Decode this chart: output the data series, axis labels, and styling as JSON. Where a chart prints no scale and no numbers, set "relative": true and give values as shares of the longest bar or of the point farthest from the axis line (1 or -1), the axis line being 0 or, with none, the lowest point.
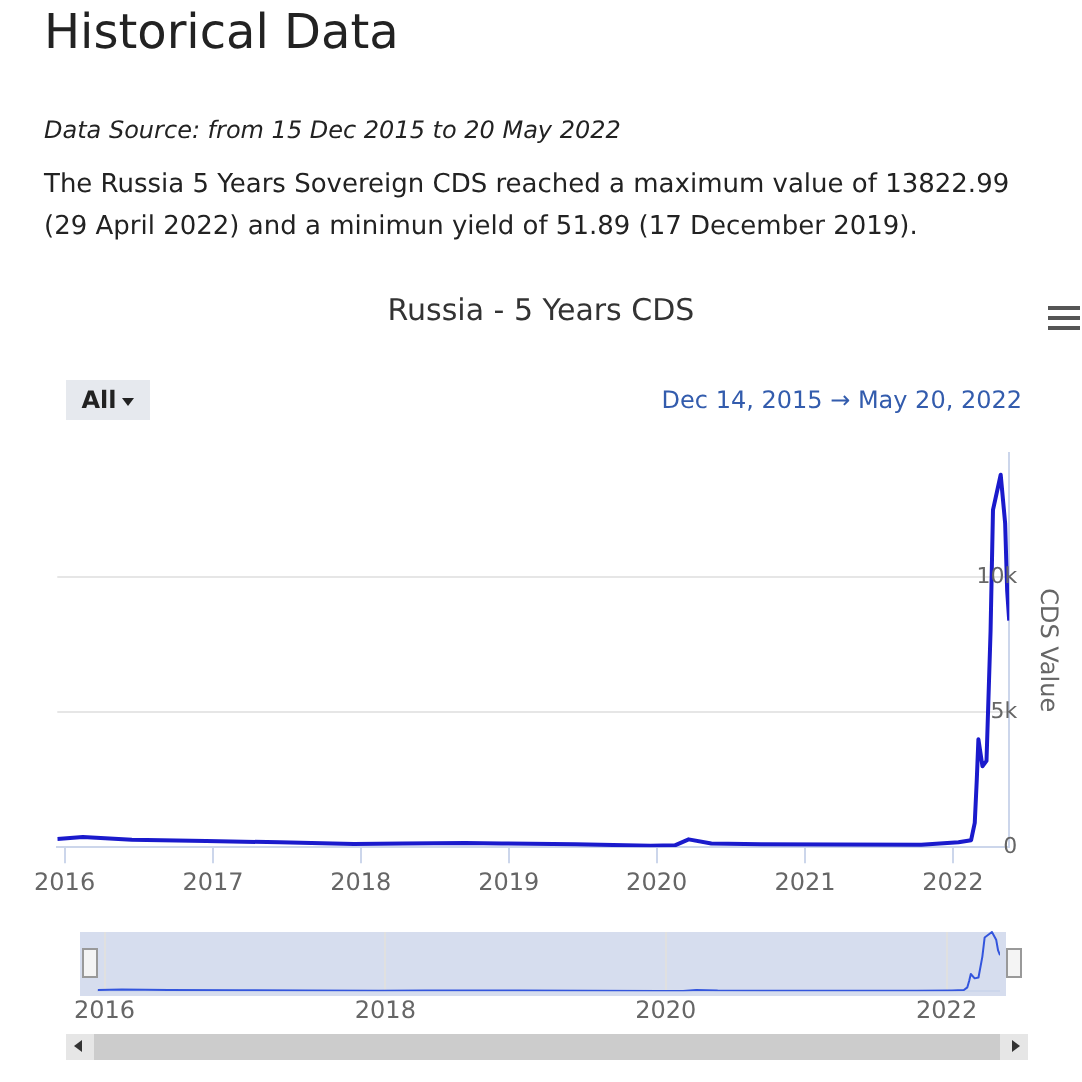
{
  "chart_data": [
    {
      "type": "line",
      "title": "Russia - 5 Years CDS",
      "ylabel": "CDS Value",
      "annotations": [
        "Historical Data",
        "Data Source: from 15 Dec 2015 to 20 May 2022",
        "The Russia 5 Years Sovereign CDS reached a maximum value of 13822.99 (29 April 2022) and a minimun yield of 51.89 (17 December 2019).",
        "All",
        "Dec 14, 2015",
        "→",
        "May 20, 2022"
      ],
      "x": [
        "2015-12-14",
        "2016-02-15",
        "2016-06-15",
        "2016-12-15",
        "2017-06-15",
        "2017-12-15",
        "2018-04-15",
        "2018-09-15",
        "2018-12-15",
        "2019-06-15",
        "2019-12-17",
        "2020-02-15",
        "2020-03-20",
        "2020-05-15",
        "2020-09-15",
        "2021-03-15",
        "2021-10-15",
        "2022-01-15",
        "2022-02-15",
        "2022-02-24",
        "2022-03-01",
        "2022-03-05",
        "2022-03-15",
        "2022-03-25",
        "2022-04-04",
        "2022-04-10",
        "2022-04-29",
        "2022-05-10",
        "2022-05-15",
        "2022-05-20"
      ],
      "values": [
        300,
        380,
        280,
        230,
        180,
        120,
        140,
        160,
        140,
        110,
        50,
        70,
        290,
        140,
        110,
        100,
        90,
        180,
        260,
        900,
        2500,
        4000,
        3000,
        3200,
        8000,
        12500,
        13800,
        12000,
        9500,
        8400
      ],
      "color": "#1a1acc",
      "marker": "none",
      "line_style": "solid",
      "grid": "y",
      "legend": false,
      "xlim": [
        "2015-12-14",
        "2022-05-20"
      ],
      "xticks": [
        {
          "value": "2016-01-01",
          "label": "2016"
        },
        {
          "value": "2017-01-01",
          "label": "2017"
        },
        {
          "value": "2018-01-01",
          "label": "2018"
        },
        {
          "value": "2019-01-01",
          "label": "2019"
        },
        {
          "value": "2020-01-01",
          "label": "2020"
        },
        {
          "value": "2021-01-01",
          "label": "2021"
        },
        {
          "value": "2022-01-01",
          "label": "2022"
        }
      ],
      "ylim": [
        0,
        14600
      ],
      "yticks": [
        0,
        {
          "value": 5000,
          "label": "5k"
        },
        {
          "value": 10000,
          "label": "10k"
        }
      ]
    },
    {
      "type": "line",
      "x": [
        "2015-12-14",
        "2016-02-15",
        "2016-06-15",
        "2016-12-15",
        "2017-06-15",
        "2017-12-15",
        "2018-04-15",
        "2018-09-15",
        "2018-12-15",
        "2019-06-15",
        "2019-12-17",
        "2020-02-15",
        "2020-03-20",
        "2020-05-15",
        "2020-09-15",
        "2021-03-15",
        "2021-10-15",
        "2022-01-15",
        "2022-02-15",
        "2022-02-24",
        "2022-03-01",
        "2022-03-05",
        "2022-03-15",
        "2022-03-25",
        "2022-04-04",
        "2022-04-10",
        "2022-04-29",
        "2022-05-10",
        "2022-05-15",
        "2022-05-20"
      ],
      "values": [
        0.022,
        0.028,
        0.02,
        0.017,
        0.013,
        0.009,
        0.01,
        0.012,
        0.01,
        0.008,
        0.004,
        0.005,
        0.021,
        0.01,
        0.008,
        0.007,
        0.007,
        0.013,
        0.019,
        0.065,
        0.181,
        0.29,
        0.217,
        0.232,
        0.58,
        0.906,
        1,
        0.87,
        0.688,
        0.609
      ],
      "relative": true,
      "color": "#3355dd",
      "marker": "none",
      "line_style": "solid",
      "grid": "x",
      "legend": false,
      "tick_labels": "x",
      "xlim": [
        "2015-12-14",
        "2022-05-20"
      ],
      "xticks": [
        {
          "value": "2016-01-01",
          "label": "2016"
        },
        {
          "value": "2018-01-01",
          "label": "2018"
        },
        {
          "value": "2020-01-01",
          "label": "2020"
        },
        {
          "value": "2022-01-01",
          "label": "2022"
        }
      ]
    }
  ]
}
